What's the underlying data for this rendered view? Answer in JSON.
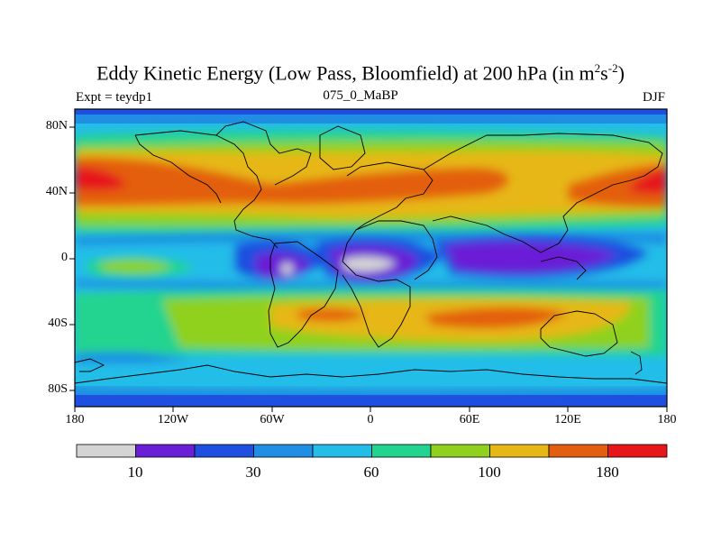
{
  "title": {
    "main": "Eddy Kinetic Energy (Low Pass, Bloomfield) at 200 hPa (in m",
    "sup1": "2",
    "mid": "s",
    "sup2": "-2",
    "end": ")"
  },
  "subtitle_left": "Expt = teydp1",
  "subtitle_center": "075_0_MaBP",
  "subtitle_right": "DJF",
  "y_ticks": [
    "80N",
    "40N",
    "0",
    "40S",
    "80S"
  ],
  "x_ticks": [
    "180",
    "120W",
    "60W",
    "0",
    "60E",
    "120E",
    "180"
  ],
  "colorbar": {
    "colors": [
      "#d4d4d4",
      "#6a1fd6",
      "#1e4fe0",
      "#1f8ee3",
      "#24bde8",
      "#22d48f",
      "#8fd11e",
      "#e6b717",
      "#e35f10",
      "#e6161a"
    ],
    "labels": [
      "10",
      "30",
      "60",
      "100",
      "180"
    ]
  },
  "colors": {
    "background": "#24bde8",
    "frame": "#000000"
  }
}
